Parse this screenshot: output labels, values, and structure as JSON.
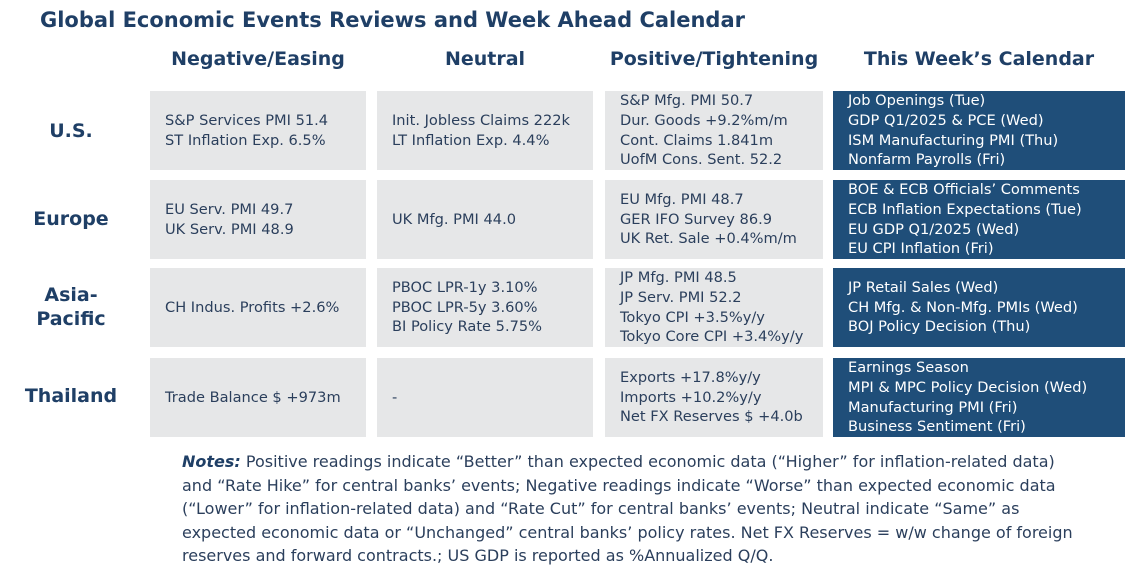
{
  "title": "Global Economic Events Reviews and Week Ahead Calendar",
  "columns": [
    "Negative/Easing",
    "Neutral",
    "Positive/Tightening",
    "This Week’s Calendar"
  ],
  "rows": [
    {
      "label": "U.S.",
      "negative": [
        "S&P Services PMI 51.4",
        "ST Inflation Exp. 6.5%"
      ],
      "neutral": [
        "Init. Jobless Claims 222k",
        "LT Inflation Exp. 4.4%"
      ],
      "positive": [
        "S&P Mfg. PMI 50.7",
        "Dur. Goods +9.2%m/m",
        "Cont. Claims 1.841m",
        "UofM Cons. Sent. 52.2"
      ],
      "calendar": [
        "Job Openings (Tue)",
        "GDP Q1/2025 & PCE (Wed)",
        "ISM Manufacturing PMI (Thu)",
        "Nonfarm Payrolls (Fri)"
      ]
    },
    {
      "label": "Europe",
      "negative": [
        "EU Serv. PMI 49.7",
        "UK Serv. PMI 48.9"
      ],
      "neutral": [
        "UK Mfg. PMI 44.0"
      ],
      "positive": [
        "EU Mfg. PMI 48.7",
        "GER IFO Survey 86.9",
        "UK Ret. Sale +0.4%m/m"
      ],
      "calendar": [
        "BOE & ECB Officials’ Comments",
        "ECB Inflation Expectations (Tue)",
        "EU GDP Q1/2025 (Wed)",
        "EU CPI Inflation (Fri)"
      ]
    },
    {
      "label": "Asia-Pacific",
      "label_lines": [
        "Asia-",
        "Pacific"
      ],
      "negative": [
        "CH Indus. Profits +2.6%"
      ],
      "neutral": [
        "PBOC LPR-1y 3.10%",
        "PBOC LPR-5y 3.60%",
        "BI Policy Rate 5.75%"
      ],
      "positive": [
        "JP Mfg. PMI 48.5",
        "JP Serv. PMI 52.2",
        "Tokyo CPI +3.5%y/y",
        "Tokyo Core CPI +3.4%y/y"
      ],
      "calendar": [
        "JP Retail Sales (Wed)",
        "CH Mfg. & Non-Mfg. PMIs (Wed)",
        "BOJ Policy Decision (Thu)"
      ]
    },
    {
      "label": "Thailand",
      "negative": [
        "Trade Balance $ +973m"
      ],
      "neutral": [
        "-"
      ],
      "positive": [
        "Exports +17.8%y/y",
        "Imports +10.2%y/y",
        "Net FX Reserves $ +4.0b"
      ],
      "calendar": [
        "Earnings Season",
        "MPI & MPC Policy Decision (Wed)",
        "Manufacturing PMI (Fri)",
        "Business Sentiment (Fri)"
      ]
    }
  ],
  "notes": {
    "label": "Notes:",
    "text": "Positive readings indicate “Better” than expected economic data (“Higher” for inflation-related data) and “Rate Hike” for central banks’ events; Negative readings indicate “Worse” than expected economic data (“Lower” for inflation-related data) and “Rate Cut” for central banks’ events; Neutral indicate “Same” as expected economic data or “Unchanged” central banks’ policy rates. Net FX Reserves = w/w change of foreign reserves and forward contracts.; US GDP is reported as %Annualized Q/Q."
  },
  "colors": {
    "heading": "#1f3f66",
    "cell_bg": "#e6e7e8",
    "calendar_bg": "#1f4e79",
    "calendar_text": "#ffffff"
  }
}
